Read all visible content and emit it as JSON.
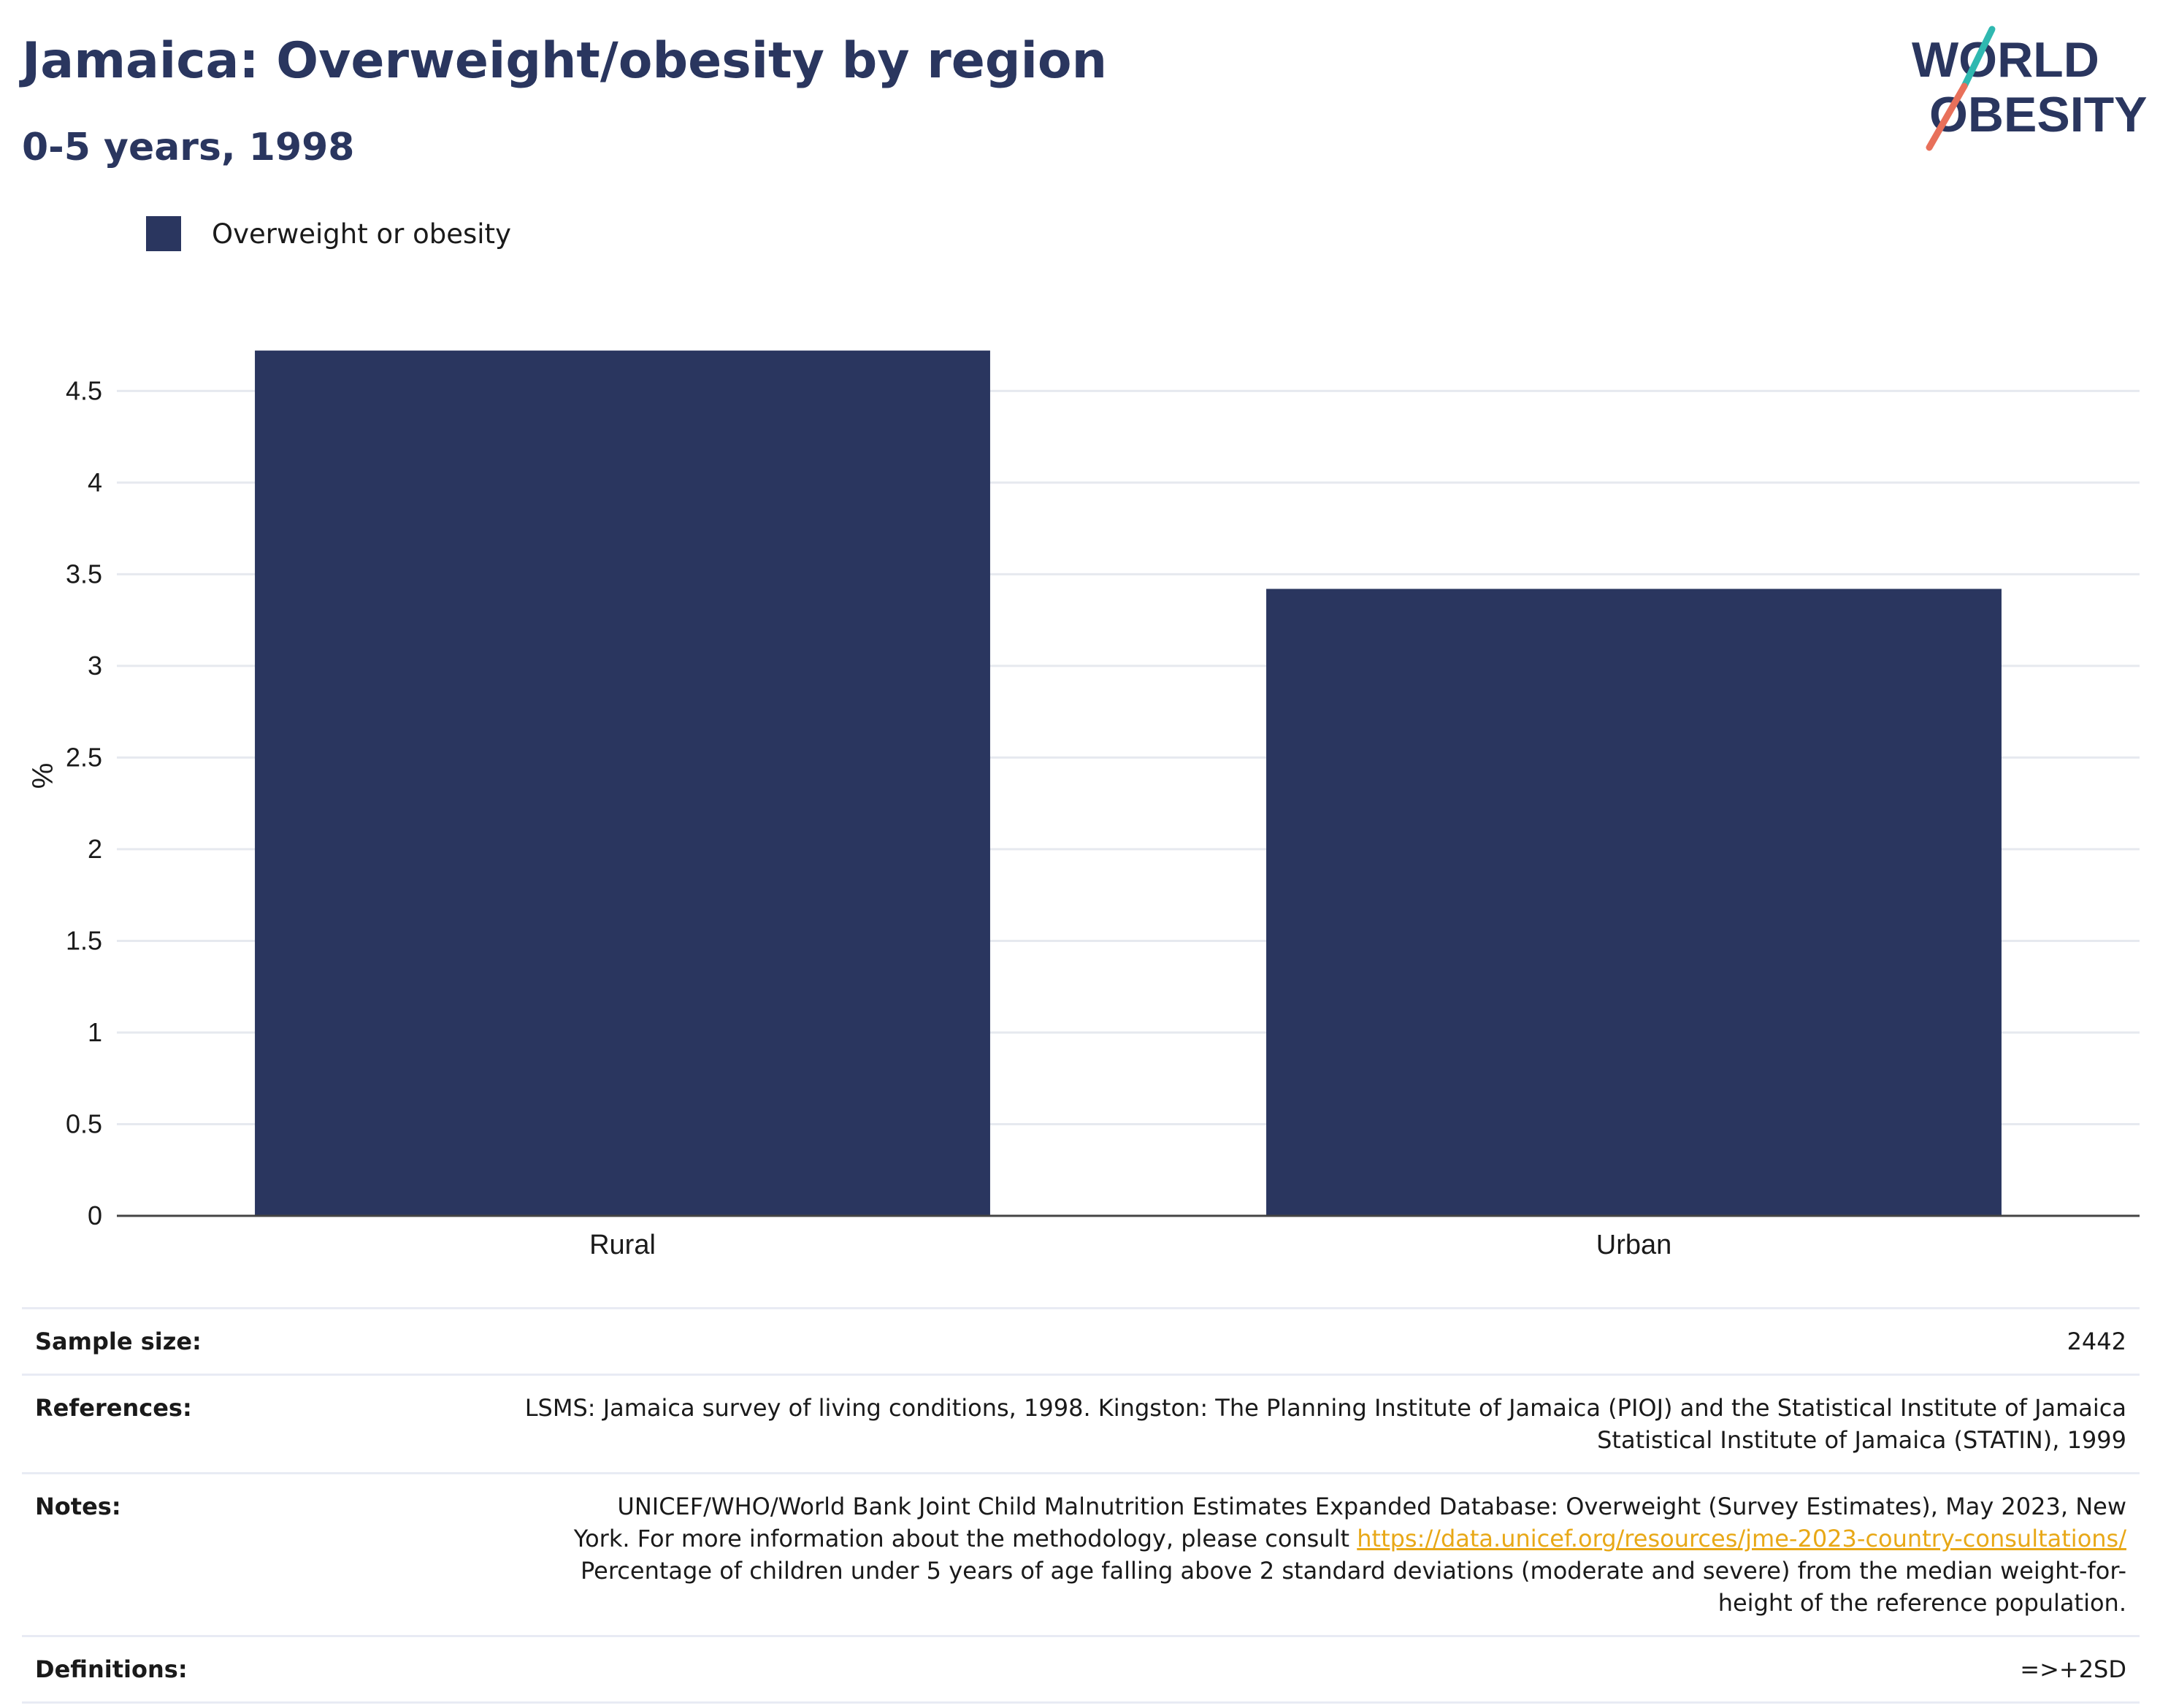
{
  "header": {
    "title": "Jamaica: Overweight/obesity by region",
    "subtitle": "0-5 years, 1998"
  },
  "logo": {
    "line1": "WORLD",
    "line2": "OBESITY"
  },
  "colors": {
    "bar": "#2a365f",
    "title": "#2a365f",
    "link": "#e8a817",
    "logo_teal": "#2fb8b0",
    "logo_coral": "#e8705a"
  },
  "legend": {
    "items": [
      {
        "label": "Overweight or obesity",
        "color": "#2a365f"
      }
    ]
  },
  "chart_data": {
    "type": "bar",
    "categories": [
      "Rural",
      "Urban"
    ],
    "series": [
      {
        "name": "Overweight or obesity",
        "values": [
          4.72,
          3.42
        ]
      }
    ],
    "ylabel": "%",
    "xlabel": "",
    "ylim": [
      0,
      4.8
    ],
    "yticks": [
      0,
      0.5,
      1,
      1.5,
      2,
      2.5,
      3,
      3.5,
      4,
      4.5
    ],
    "ytick_labels": [
      "0",
      "0.5",
      "1",
      "1.5",
      "2",
      "2.5",
      "3",
      "3.5",
      "4",
      "4.5"
    ],
    "grid": true
  },
  "meta": {
    "sample_size": {
      "label": "Sample size:",
      "value": "2442"
    },
    "references": {
      "label": "References:",
      "line1": "LSMS: Jamaica survey of living conditions, 1998. Kingston: The Planning Institute of Jamaica (PIOJ) and the Statistical Institute of Jamaica",
      "line2": "Statistical Institute of Jamaica (STATIN), 1999"
    },
    "notes": {
      "label": "Notes:",
      "line1": "UNICEF/WHO/World Bank Joint Child Malnutrition Estimates Expanded Database: Overweight (Survey Estimates), May 2023, New",
      "line2_prefix": "York. For more information about the methodology, please consult ",
      "link": "https://data.unicef.org/resources/jme-2023-country-consultations/",
      "line3": "Percentage of children under 5 years of age falling above 2 standard deviations (moderate and severe) from the median weight-for-",
      "line4": "height of the reference population."
    },
    "definitions": {
      "label": "Definitions:",
      "value": "=>+2SD"
    }
  }
}
